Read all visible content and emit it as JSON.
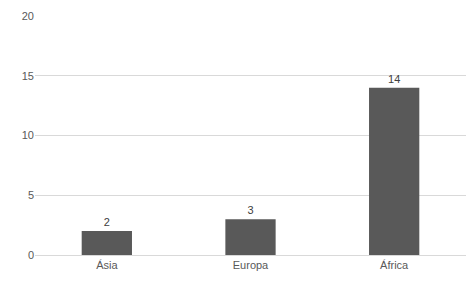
{
  "chart_data": {
    "type": "bar",
    "categories": [
      "Ásia",
      "Europa",
      "África"
    ],
    "values": [
      2,
      3,
      14
    ],
    "color": "#595959",
    "ylim": [
      0,
      20
    ],
    "yticks": [
      0,
      5,
      10,
      15,
      20
    ],
    "grid": true,
    "data_labels": true
  }
}
